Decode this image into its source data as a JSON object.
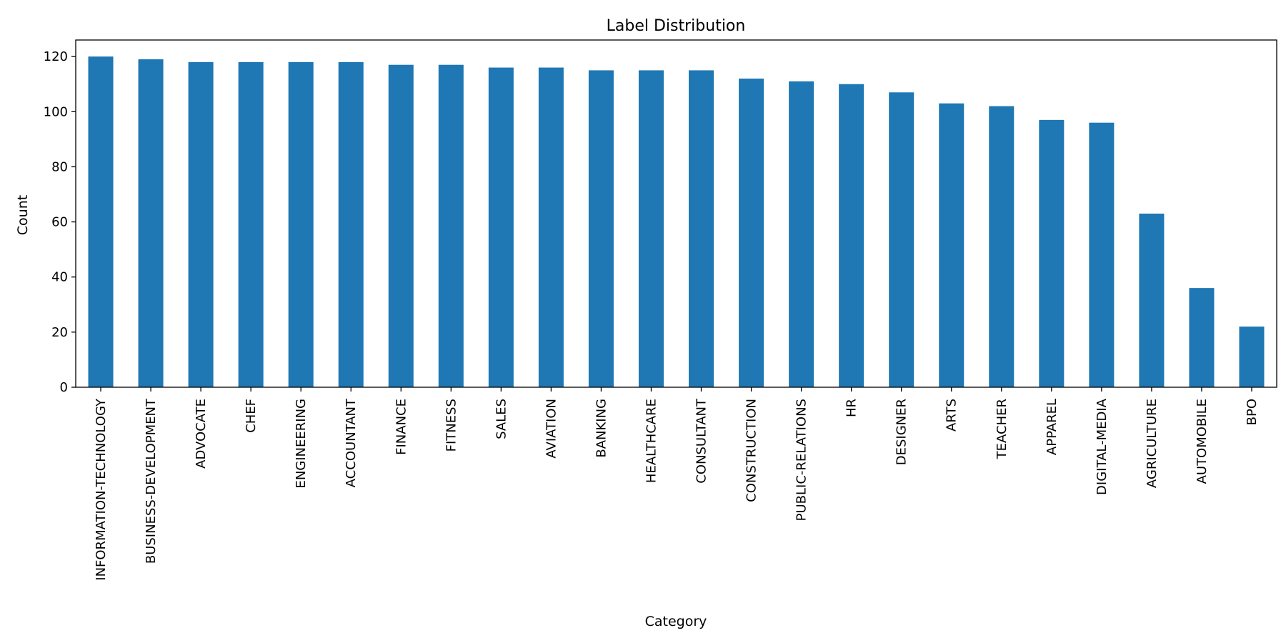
{
  "chart_data": {
    "type": "bar",
    "title": "Label Distribution",
    "xlabel": "Category",
    "ylabel": "Count",
    "ylim": [
      0,
      126
    ],
    "yticks": [
      0,
      20,
      40,
      60,
      80,
      100,
      120
    ],
    "grid": false,
    "bar_color": "#1f77b4",
    "categories": [
      "INFORMATION-TECHNOLOGY",
      "BUSINESS-DEVELOPMENT",
      "ADVOCATE",
      "CHEF",
      "ENGINEERING",
      "ACCOUNTANT",
      "FINANCE",
      "FITNESS",
      "SALES",
      "AVIATION",
      "BANKING",
      "HEALTHCARE",
      "CONSULTANT",
      "CONSTRUCTION",
      "PUBLIC-RELATIONS",
      "HR",
      "DESIGNER",
      "ARTS",
      "TEACHER",
      "APPAREL",
      "DIGITAL-MEDIA",
      "AGRICULTURE",
      "AUTOMOBILE",
      "BPO"
    ],
    "values": [
      120,
      119,
      118,
      118,
      118,
      118,
      117,
      117,
      116,
      116,
      115,
      115,
      115,
      112,
      111,
      110,
      107,
      103,
      102,
      97,
      96,
      63,
      36,
      22
    ]
  }
}
